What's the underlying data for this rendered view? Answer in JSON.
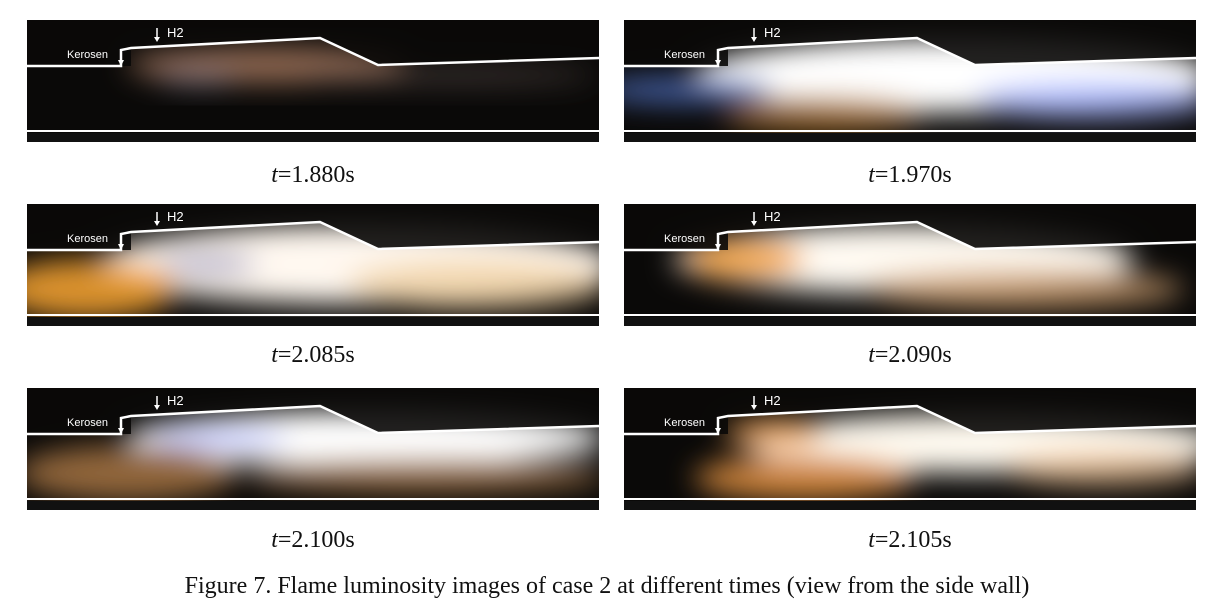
{
  "figure": {
    "panels": [
      {
        "kerosene_label": "Kerosen",
        "h2_label": "H2",
        "time_var": "t",
        "time_value": "=1.880s"
      },
      {
        "kerosene_label": "Kerosen",
        "h2_label": "H2",
        "time_var": "t",
        "time_value": "=1.970s"
      },
      {
        "kerosene_label": "Kerosen",
        "h2_label": "H2",
        "time_var": "t",
        "time_value": "=2.085s"
      },
      {
        "kerosene_label": "Kerosen",
        "h2_label": "H2",
        "time_var": "t",
        "time_value": "=2.090s"
      },
      {
        "kerosene_label": "Kerosen",
        "h2_label": "H2",
        "time_var": "t",
        "time_value": "=2.100s"
      },
      {
        "kerosene_label": "Kerosen",
        "h2_label": "H2",
        "time_var": "t",
        "time_value": "=2.105s"
      }
    ],
    "caption": "Figure 7. Flame luminosity images of case 2 at different times (view from the side wall)"
  }
}
